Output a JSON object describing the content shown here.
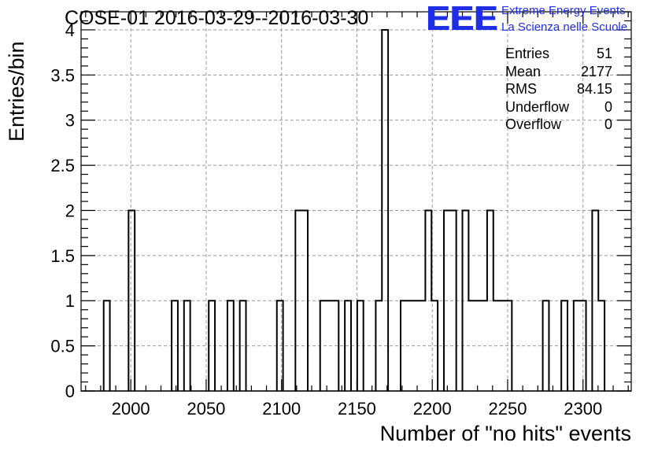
{
  "header": {
    "title": "COSE-01 2016-03-29--2016-03-30",
    "logo_mark": "EEE",
    "logo_line1": "Extreme Energy Events",
    "logo_line2": "La Scienza nelle Scuole",
    "logo_color": "#1f2ee6"
  },
  "stats": [
    {
      "name": "Entries",
      "value": "51"
    },
    {
      "name": "Mean",
      "value": "2177"
    },
    {
      "name": "RMS",
      "value": "84.15"
    },
    {
      "name": "Underflow",
      "value": "0"
    },
    {
      "name": "Overflow",
      "value": "0"
    }
  ],
  "chart_data": {
    "type": "bar",
    "style": "step-histogram",
    "title": "COSE-01 2016-03-29--2016-03-30",
    "xlabel": "Number of \"no hits\" events",
    "ylabel": "Entries/bin",
    "xlim": [
      1967,
      2332
    ],
    "ylim": [
      0,
      4.2
    ],
    "bin_width": 4.1,
    "x_ticks": [
      2000,
      2050,
      2100,
      2150,
      2200,
      2250,
      2300
    ],
    "x_tick_labels": [
      "2000",
      "2050",
      "2100",
      "2150",
      "2200",
      "2250",
      "2300"
    ],
    "y_ticks": [
      0,
      0.5,
      1,
      1.5,
      2,
      2.5,
      3,
      3.5,
      4
    ],
    "y_tick_labels": [
      "0",
      "0.5",
      "1",
      "1.5",
      "2",
      "2.5",
      "3",
      "3.5",
      "4"
    ],
    "grid": true,
    "line_color": "#000000",
    "grid_color": "#9a9a9a",
    "bins": [
      {
        "x": 1982.0,
        "y": 1
      },
      {
        "x": 1998.5,
        "y": 2
      },
      {
        "x": 2027.1,
        "y": 1
      },
      {
        "x": 2035.3,
        "y": 1
      },
      {
        "x": 2051.7,
        "y": 1
      },
      {
        "x": 2064.1,
        "y": 1
      },
      {
        "x": 2072.3,
        "y": 1
      },
      {
        "x": 2096.9,
        "y": 1
      },
      {
        "x": 2109.2,
        "y": 2
      },
      {
        "x": 2113.3,
        "y": 2
      },
      {
        "x": 2125.6,
        "y": 1
      },
      {
        "x": 2129.7,
        "y": 1
      },
      {
        "x": 2133.8,
        "y": 1
      },
      {
        "x": 2142.0,
        "y": 1
      },
      {
        "x": 2150.2,
        "y": 1
      },
      {
        "x": 2162.5,
        "y": 1
      },
      {
        "x": 2166.6,
        "y": 4
      },
      {
        "x": 2179.0,
        "y": 1
      },
      {
        "x": 2183.1,
        "y": 1
      },
      {
        "x": 2187.2,
        "y": 1
      },
      {
        "x": 2191.3,
        "y": 1
      },
      {
        "x": 2195.4,
        "y": 2
      },
      {
        "x": 2199.5,
        "y": 1
      },
      {
        "x": 2207.7,
        "y": 2
      },
      {
        "x": 2211.8,
        "y": 2
      },
      {
        "x": 2220.0,
        "y": 2
      },
      {
        "x": 2224.1,
        "y": 1
      },
      {
        "x": 2228.2,
        "y": 1
      },
      {
        "x": 2232.3,
        "y": 1
      },
      {
        "x": 2236.4,
        "y": 2
      },
      {
        "x": 2240.5,
        "y": 1
      },
      {
        "x": 2244.6,
        "y": 1
      },
      {
        "x": 2248.7,
        "y": 1
      },
      {
        "x": 2273.3,
        "y": 1
      },
      {
        "x": 2285.6,
        "y": 1
      },
      {
        "x": 2293.8,
        "y": 1
      },
      {
        "x": 2297.9,
        "y": 1
      },
      {
        "x": 2306.1,
        "y": 2
      },
      {
        "x": 2310.2,
        "y": 1
      }
    ]
  }
}
